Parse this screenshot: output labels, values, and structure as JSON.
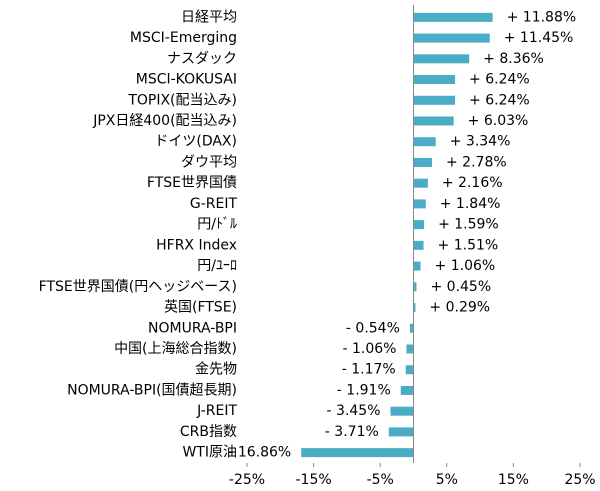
{
  "chart_data": {
    "type": "hbar",
    "categories": [
      "日経平均",
      "MSCI-Emerging",
      "ナスダック",
      "MSCI-KOKUSAI",
      "TOPIX(配当込み)",
      "JPX日経400(配当込み)",
      "ドイツ(DAX)",
      "ダウ平均",
      "FTSE世界国債",
      "G-REIT",
      "円/ﾄﾞﾙ",
      "HFRX Index",
      "円/ﾕｰﾛ",
      "FTSE世界国債(円ヘッジベース)",
      "英国(FTSE)",
      "NOMURA-BPI",
      "中国(上海総合指数)",
      "金先物",
      "NOMURA-BPI(国債超長期)",
      "J-REIT",
      "CRB指数",
      "WTI原油"
    ],
    "values": [
      11.88,
      11.45,
      8.36,
      6.24,
      6.24,
      6.03,
      3.34,
      2.78,
      2.16,
      1.84,
      1.59,
      1.51,
      1.06,
      0.45,
      0.29,
      -0.54,
      -1.06,
      -1.17,
      -1.91,
      -3.45,
      -3.71,
      -16.86
    ],
    "value_labels": [
      "+ 11.88%",
      "+ 11.45%",
      "+ 8.36%",
      "+ 6.24%",
      "+ 6.24%",
      "+ 6.03%",
      "+ 3.34%",
      "+ 2.78%",
      "+ 2.16%",
      "+ 1.84%",
      "+ 1.59%",
      "+ 1.51%",
      "+ 1.06%",
      "+ 0.45%",
      "+ 0.29%",
      "- 0.54%",
      "- 1.06%",
      "- 1.17%",
      "- 1.91%",
      "- 3.45%",
      "- 3.71%",
      "- 16.86%"
    ],
    "color": "#4bacc6",
    "xlim": [
      -25,
      25
    ],
    "xticks": [
      {
        "value": -25,
        "label": "-25%"
      },
      {
        "value": -15,
        "label": "-15%"
      },
      {
        "value": -5,
        "label": "-5%"
      },
      {
        "value": 5,
        "label": "5%"
      },
      {
        "value": 15,
        "label": "15%"
      },
      {
        "value": 25,
        "label": "25%"
      }
    ]
  }
}
